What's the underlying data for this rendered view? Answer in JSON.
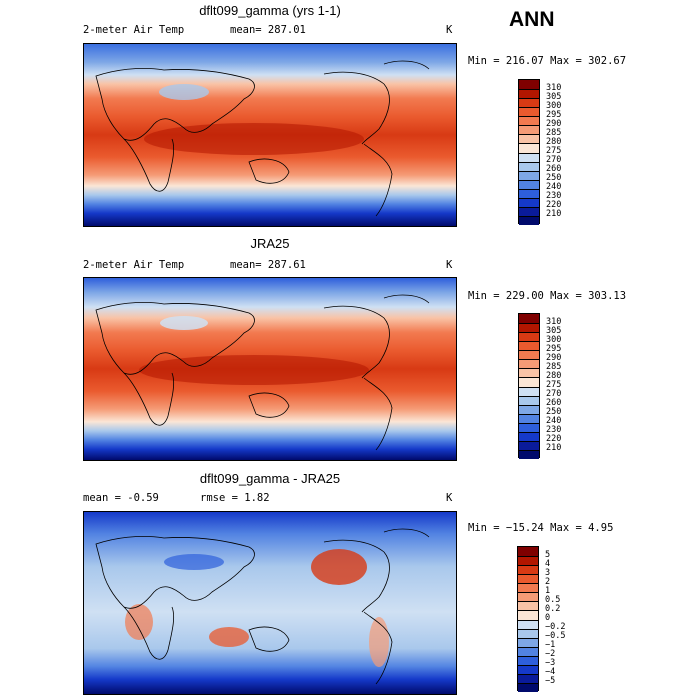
{
  "season": "ANN",
  "panels": [
    {
      "title": "dflt099_gamma (yrs 1-1)",
      "left_label": "2-meter Air Temp",
      "mid_label": "mean= 287.01",
      "units": "K",
      "range_text": "Min = 216.07 Max = 302.67",
      "colorbar_levels": [
        "310",
        "305",
        "300",
        "295",
        "290",
        "285",
        "280",
        "275",
        "270",
        "260",
        "250",
        "240",
        "230",
        "220",
        "210"
      ],
      "colorbar_colors": [
        "#7f0000",
        "#b21600",
        "#d83a14",
        "#ea5a2e",
        "#f27a50",
        "#f59b76",
        "#f9c3a6",
        "#fbe6d6",
        "#cfe0f3",
        "#a9c8ec",
        "#7ea7e6",
        "#5283e2",
        "#2e5fdc",
        "#1539c9",
        "#0a1b9a",
        "#000a6c"
      ]
    },
    {
      "title": "JRA25",
      "left_label": "2-meter Air Temp",
      "mid_label": "mean= 287.61",
      "units": "K",
      "range_text": "Min = 229.00 Max = 303.13",
      "colorbar_levels": [
        "310",
        "305",
        "300",
        "295",
        "290",
        "285",
        "280",
        "275",
        "270",
        "260",
        "250",
        "240",
        "230",
        "220",
        "210"
      ],
      "colorbar_colors": [
        "#7f0000",
        "#b21600",
        "#d83a14",
        "#ea5a2e",
        "#f27a50",
        "#f59b76",
        "#f9c3a6",
        "#fbe6d6",
        "#cfe0f3",
        "#a9c8ec",
        "#7ea7e6",
        "#5283e2",
        "#2e5fdc",
        "#1539c9",
        "#0a1b9a",
        "#000a6c"
      ]
    },
    {
      "title": "dflt099_gamma - JRA25",
      "left_label": "mean =   -0.59",
      "mid_label": "rmse =    1.82",
      "units": "K",
      "range_text": "Min = −15.24 Max =    4.95",
      "colorbar_levels": [
        "5",
        "4",
        "3",
        "2",
        "1",
        "0.5",
        "0.2",
        "0",
        "−0.2",
        "−0.5",
        "−1",
        "−2",
        "−3",
        "−4",
        "−5"
      ],
      "colorbar_colors": [
        "#7f0000",
        "#b21600",
        "#d83a14",
        "#ea5a2e",
        "#f27a50",
        "#f59b76",
        "#f9c3a6",
        "#fbe6d6",
        "#cfe0f3",
        "#a9c8ec",
        "#7ea7e6",
        "#5283e2",
        "#2e5fdc",
        "#1539c9",
        "#0a1b9a",
        "#000a6c"
      ]
    }
  ]
}
